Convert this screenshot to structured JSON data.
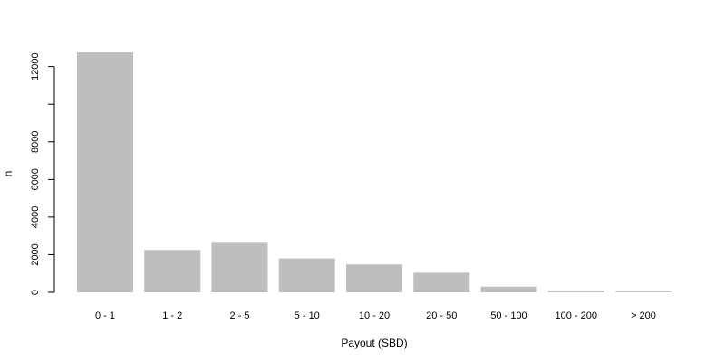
{
  "chart_data": {
    "type": "bar",
    "xlabel": "Payout (SBD)",
    "ylabel": "n",
    "categories": [
      "0 - 1",
      "1 - 2",
      "2 - 5",
      "5 - 10",
      "10 - 20",
      "20 - 50",
      "50 - 100",
      "100 - 200",
      "> 200"
    ],
    "values": [
      12750,
      2250,
      2680,
      1800,
      1480,
      1040,
      300,
      100,
      40
    ],
    "ylim": [
      0,
      12750
    ],
    "y_ticks": [
      0,
      2000,
      4000,
      6000,
      8000,
      12000
    ],
    "y_tick_labels": [
      "0",
      "2000",
      "4000",
      "6000",
      "8000",
      "12000"
    ],
    "grid": false,
    "legend": "none",
    "bar_color": "#bebebe"
  }
}
